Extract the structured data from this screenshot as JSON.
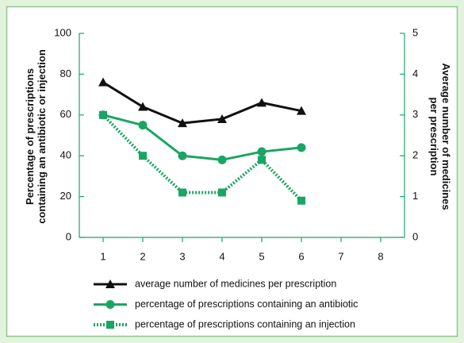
{
  "chart_data": {
    "type": "line",
    "x": [
      1,
      2,
      3,
      4,
      5,
      6
    ],
    "xlim": [
      0.4,
      8.6
    ],
    "xticks": [
      1,
      2,
      3,
      4,
      5,
      6,
      7,
      8
    ],
    "ylim": [
      0,
      100
    ],
    "yticks": [
      0,
      20,
      40,
      60,
      80,
      100
    ],
    "y2lim": [
      0,
      5
    ],
    "y2ticks": [
      0,
      1,
      2,
      3,
      4,
      5
    ],
    "y_label": [
      "Percentage of prescriptions",
      "containing an antibiotic or injection"
    ],
    "y2_label": [
      "Average number of medicines",
      "per prescription"
    ],
    "series": [
      {
        "name": "average number of medicines per prescription",
        "color": "#111111",
        "marker": "triangle",
        "linestyle": "solid",
        "axis": "y2",
        "values": [
          3.8,
          3.2,
          2.8,
          2.9,
          3.3,
          3.1
        ]
      },
      {
        "name": "percentage of prescriptions containing an antibiotic",
        "color": "#1aa564",
        "marker": "circle",
        "linestyle": "solid",
        "values": [
          60,
          55,
          40,
          38,
          42,
          44
        ]
      },
      {
        "name": "percentage of prescriptions containing an injection",
        "color": "#1aa564",
        "marker": "square",
        "linestyle": "dotted",
        "values": [
          60,
          40,
          22,
          22,
          38,
          18
        ]
      }
    ]
  }
}
